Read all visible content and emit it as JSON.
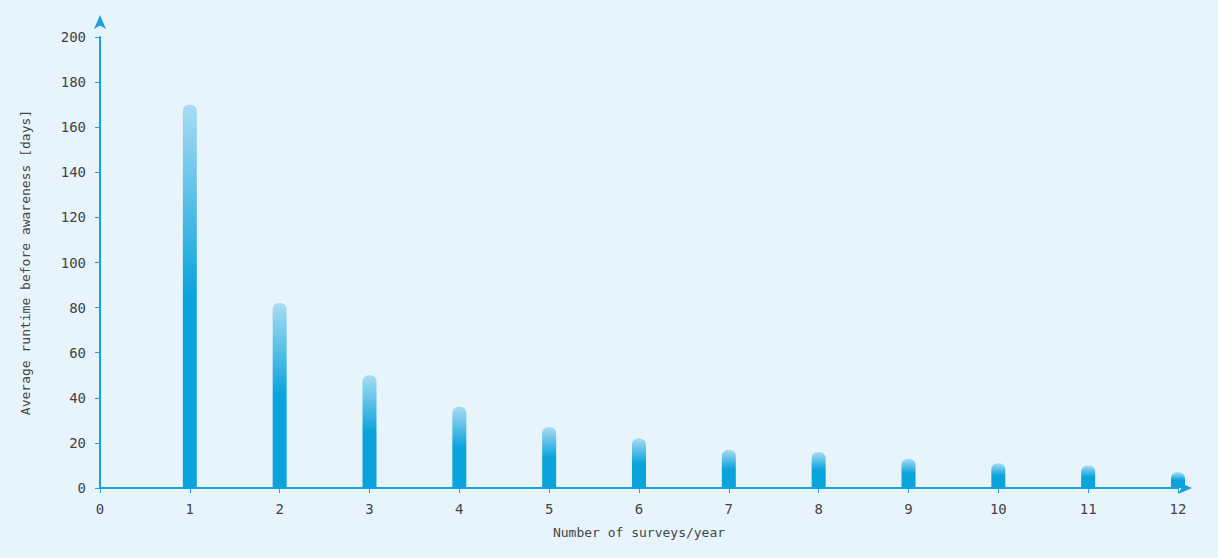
{
  "chart_data": {
    "type": "bar",
    "x_label": "Number of surveys/year",
    "y_label": "Average runtime before awareness [days]",
    "x": [
      1,
      2,
      3,
      4,
      5,
      6,
      7,
      8,
      9,
      10,
      11,
      12
    ],
    "values": [
      170,
      82,
      50,
      36,
      27,
      22,
      17,
      16,
      13,
      11,
      10,
      7
    ],
    "color": "#0aa3dc",
    "xlim": [
      0,
      12
    ],
    "xticks": [
      0,
      1,
      2,
      3,
      4,
      5,
      6,
      7,
      8,
      9,
      10,
      11,
      12
    ],
    "ylim": [
      0,
      200
    ],
    "yticks": [
      0,
      20,
      40,
      60,
      80,
      100,
      120,
      140,
      160,
      180,
      200
    ],
    "grid": false
  }
}
